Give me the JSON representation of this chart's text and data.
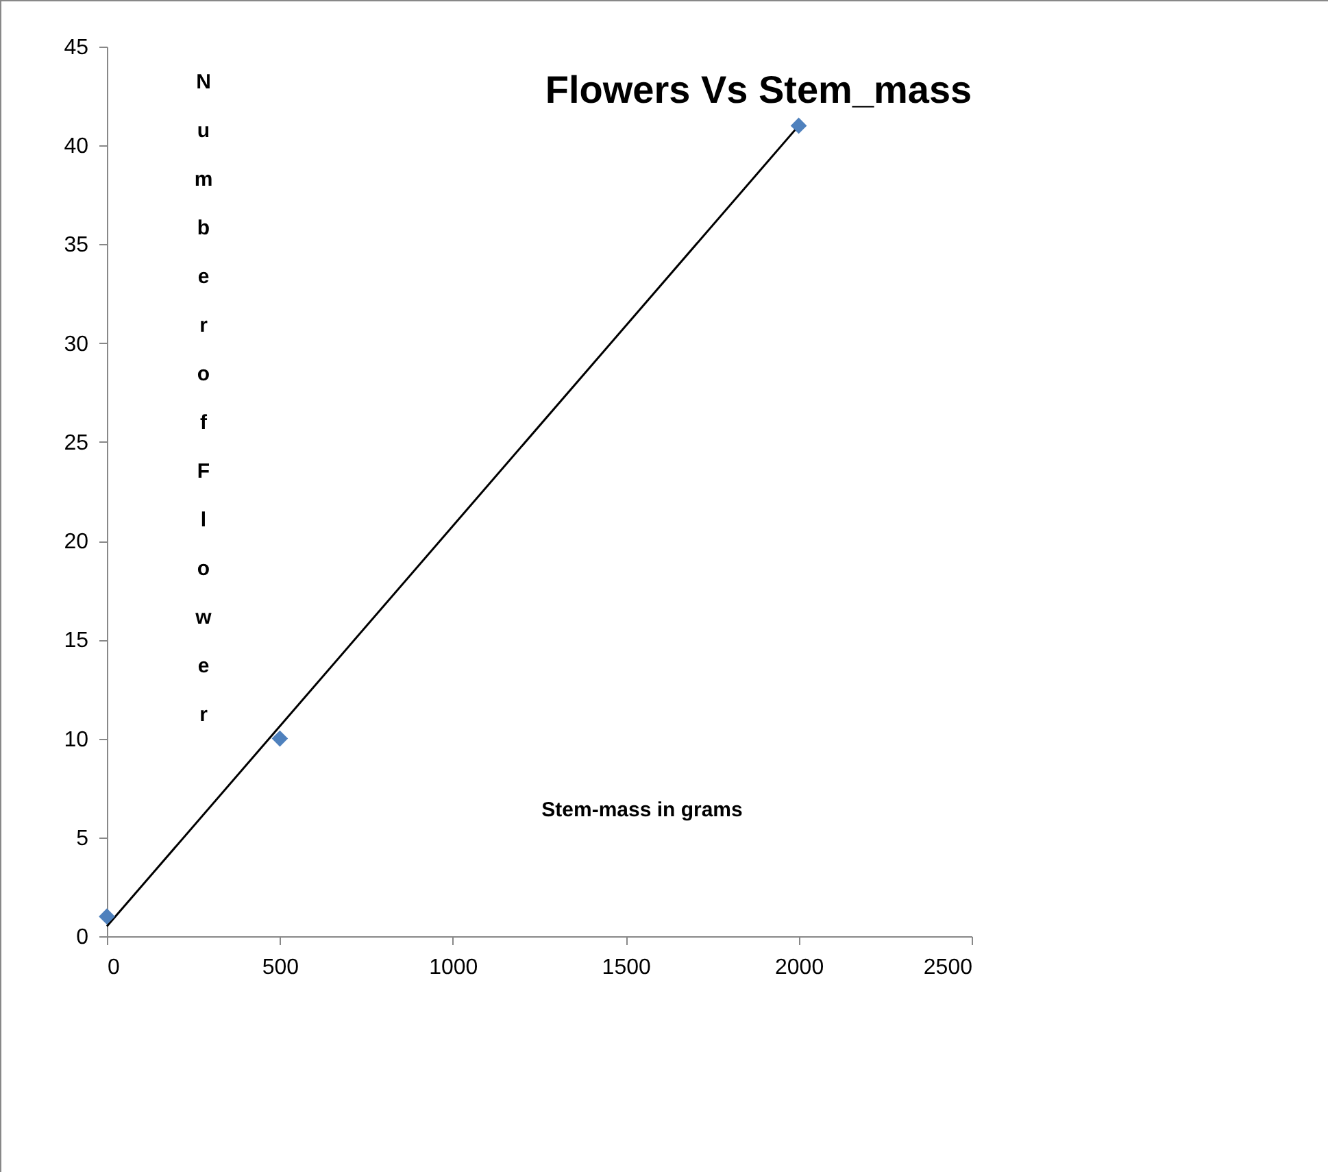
{
  "chart_data": {
    "type": "scatter",
    "title": "Flowers Vs Stem_mass",
    "xlabel": "Stem-mass in grams",
    "ylabel": "Number of Flower",
    "x": [
      0,
      500,
      2000
    ],
    "series": [
      {
        "color": "#4f81bd",
        "marker": "diamond",
        "values": [
          1,
          10,
          41
        ]
      },
      {
        "type": "line",
        "color": "#000000",
        "marker": "none",
        "x": [
          0,
          2000
        ],
        "values": [
          0.5,
          41
        ]
      }
    ],
    "xlim": [
      0,
      2500
    ],
    "xticks": [
      0,
      500,
      1000,
      1500,
      2000,
      2500
    ],
    "ylim": [
      0,
      45
    ],
    "yticks": [
      0,
      5,
      10,
      15,
      20,
      25,
      30,
      35,
      40,
      45
    ],
    "line_style": "solid",
    "grid": false
  }
}
